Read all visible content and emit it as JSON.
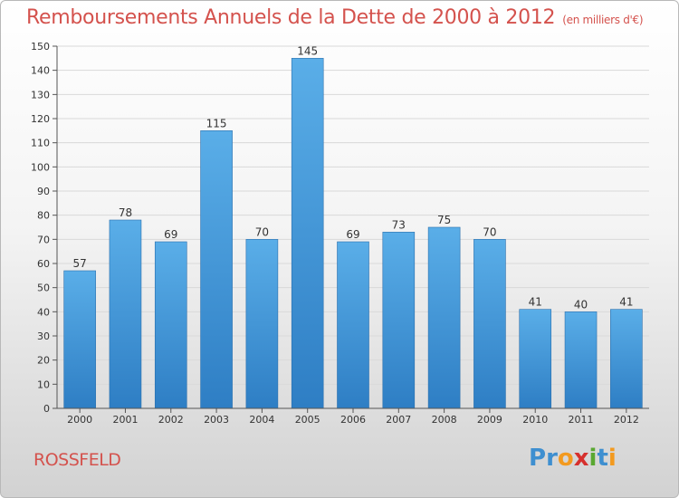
{
  "title": "Remboursements Annuels de la Dette de 2000 à 2012",
  "unit": "(en milliers d'€)",
  "commune": "ROSSFELD",
  "logo": {
    "text": "Proxiti",
    "letters": [
      "P",
      "r",
      "o",
      "x",
      "i",
      "t",
      "i"
    ],
    "colors": [
      "#3e8fd0",
      "#3e8fd0",
      "#f39a1f",
      "#d6302d",
      "#5aa832",
      "#3e8fd0",
      "#f39a1f"
    ]
  },
  "chart_data": {
    "type": "bar",
    "categories": [
      "2000",
      "2001",
      "2002",
      "2003",
      "2004",
      "2005",
      "2006",
      "2007",
      "2008",
      "2009",
      "2010",
      "2011",
      "2012"
    ],
    "values": [
      57,
      78,
      69,
      115,
      70,
      145,
      69,
      73,
      75,
      70,
      41,
      40,
      41
    ],
    "ylim": [
      0,
      150
    ],
    "yticks": [
      0,
      10,
      20,
      30,
      40,
      50,
      60,
      70,
      80,
      90,
      100,
      110,
      120,
      130,
      140,
      150
    ],
    "xlabel": "",
    "ylabel": "",
    "bar_color_top": "#5aaee8",
    "bar_color_bottom": "#2e7ec4"
  }
}
